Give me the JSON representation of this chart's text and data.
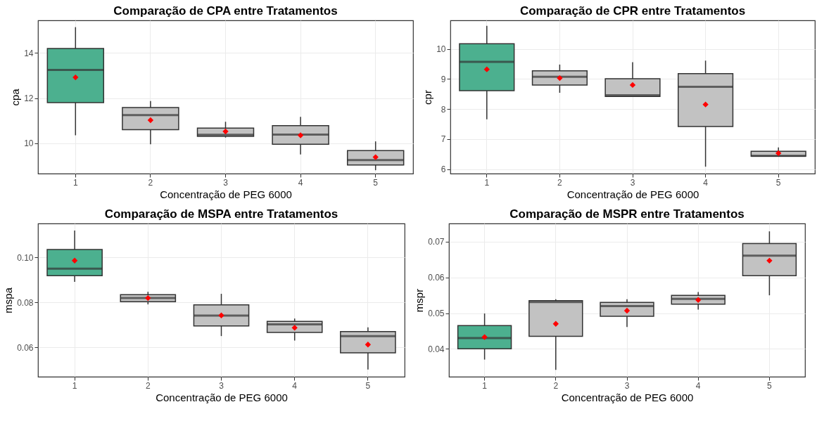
{
  "chart_data": [
    {
      "type": "box",
      "title": "Comparação de CPA entre Tratamentos",
      "xlabel": "Concentração de PEG 6000",
      "ylabel": "cpa",
      "categories": [
        "1",
        "2",
        "3",
        "4",
        "5"
      ],
      "colors": [
        "#4cb08f",
        "#c2c2c2",
        "#c2c2c2",
        "#c2c2c2",
        "#c2c2c2"
      ],
      "ylim": [
        8.65,
        15.45
      ],
      "yticks": [
        10,
        12,
        14
      ],
      "grid": true,
      "marker": "diamond",
      "boxes": [
        {
          "low": 10.35,
          "q1": 11.8,
          "median": 13.25,
          "q3": 14.2,
          "high": 15.15,
          "mean": 12.92
        },
        {
          "low": 9.95,
          "q1": 10.6,
          "median": 11.25,
          "q3": 11.58,
          "high": 11.87,
          "mean": 11.02
        },
        {
          "low": 10.25,
          "q1": 10.3,
          "median": 10.37,
          "q3": 10.67,
          "high": 10.95,
          "mean": 10.52
        },
        {
          "low": 9.5,
          "q1": 9.95,
          "median": 10.38,
          "q3": 10.78,
          "high": 11.17,
          "mean": 10.35
        },
        {
          "low": 8.8,
          "q1": 9.03,
          "median": 9.25,
          "q3": 9.67,
          "high": 10.08,
          "mean": 9.38
        }
      ]
    },
    {
      "type": "box",
      "title": "Comparação de CPR entre Tratamentos",
      "xlabel": "Concentração de PEG 6000",
      "ylabel": "cpr",
      "categories": [
        "1",
        "2",
        "3",
        "4",
        "5"
      ],
      "colors": [
        "#4cb08f",
        "#c2c2c2",
        "#c2c2c2",
        "#c2c2c2",
        "#c2c2c2"
      ],
      "ylim": [
        5.85,
        10.95
      ],
      "yticks": [
        6,
        7,
        8,
        9,
        10
      ],
      "grid": true,
      "marker": "diamond",
      "boxes": [
        {
          "low": 7.66,
          "q1": 8.61,
          "median": 9.57,
          "q3": 10.17,
          "high": 10.77,
          "mean": 9.32
        },
        {
          "low": 8.54,
          "q1": 8.8,
          "median": 9.07,
          "q3": 9.27,
          "high": 9.48,
          "mean": 9.03
        },
        {
          "low": 8.42,
          "q1": 8.42,
          "median": 8.46,
          "q3": 9.01,
          "high": 9.56,
          "mean": 8.8
        },
        {
          "low": 6.08,
          "q1": 7.42,
          "median": 8.74,
          "q3": 9.18,
          "high": 9.61,
          "mean": 8.15
        },
        {
          "low": 6.43,
          "q1": 6.43,
          "median": 6.44,
          "q3": 6.59,
          "high": 6.72,
          "mean": 6.53
        }
      ]
    },
    {
      "type": "box",
      "title": "Comparação de MSPA entre Tratamentos",
      "xlabel": "Concentração de PEG 6000",
      "ylabel": "mspa",
      "categories": [
        "1",
        "2",
        "3",
        "4",
        "5"
      ],
      "colors": [
        "#4cb08f",
        "#c2c2c2",
        "#c2c2c2",
        "#c2c2c2",
        "#c2c2c2"
      ],
      "ylim": [
        0.0469,
        0.1151
      ],
      "yticks": [
        0.06,
        0.08,
        {
          "value": 0.1,
          "label": "0.10"
        }
      ],
      "grid": true,
      "marker": "diamond",
      "boxes": [
        {
          "low": 0.0891,
          "q1": 0.0919,
          "median": 0.095,
          "q3": 0.1035,
          "high": 0.112,
          "mean": 0.0986
        },
        {
          "low": 0.0791,
          "q1": 0.0803,
          "median": 0.0819,
          "q3": 0.0834,
          "high": 0.0847,
          "mean": 0.0819
        },
        {
          "low": 0.065,
          "q1": 0.0695,
          "median": 0.0741,
          "q3": 0.0789,
          "high": 0.0838,
          "mean": 0.0742
        },
        {
          "low": 0.063,
          "q1": 0.0666,
          "median": 0.0702,
          "q3": 0.0715,
          "high": 0.0728,
          "mean": 0.0687
        },
        {
          "low": 0.0501,
          "q1": 0.0575,
          "median": 0.065,
          "q3": 0.067,
          "high": 0.0689,
          "mean": 0.0612
        }
      ]
    },
    {
      "type": "box",
      "title": "Comparação de MSPR entre Tratamentos",
      "xlabel": "Concentração de PEG 6000",
      "ylabel": "mspr",
      "categories": [
        "1",
        "2",
        "3",
        "4",
        "5"
      ],
      "colors": [
        "#4cb08f",
        "#c2c2c2",
        "#c2c2c2",
        "#c2c2c2",
        "#c2c2c2"
      ],
      "ylim": [
        0.0322,
        0.0751
      ],
      "yticks": [
        0.04,
        0.05,
        0.06,
        0.07
      ],
      "grid": true,
      "marker": "diamond",
      "boxes": [
        {
          "low": 0.037,
          "q1": 0.04,
          "median": 0.043,
          "q3": 0.0465,
          "high": 0.0499,
          "mean": 0.0433
        },
        {
          "low": 0.0341,
          "q1": 0.0435,
          "median": 0.0531,
          "q3": 0.0535,
          "high": 0.0539,
          "mean": 0.047
        },
        {
          "low": 0.0461,
          "q1": 0.0491,
          "median": 0.052,
          "q3": 0.053,
          "high": 0.0539,
          "mean": 0.0507
        },
        {
          "low": 0.051,
          "q1": 0.0525,
          "median": 0.054,
          "q3": 0.055,
          "high": 0.0559,
          "mean": 0.0537
        },
        {
          "low": 0.055,
          "q1": 0.0605,
          "median": 0.0661,
          "q3": 0.0695,
          "high": 0.0729,
          "mean": 0.0647
        }
      ]
    }
  ]
}
